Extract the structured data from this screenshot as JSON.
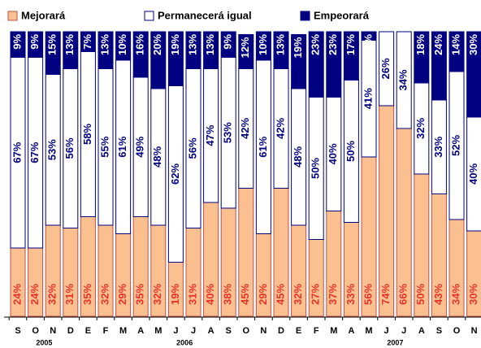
{
  "chart_data": {
    "type": "stacked_bar",
    "categories": [
      "S",
      "O",
      "N",
      "D",
      "E",
      "F",
      "M",
      "A",
      "M",
      "J",
      "J",
      "A",
      "S",
      "O",
      "N",
      "D",
      "E",
      "F",
      "M",
      "A",
      "M",
      "J",
      "J",
      "A",
      "S",
      "O",
      "N"
    ],
    "groups": [
      {
        "label": "2005",
        "start": 0,
        "end": 3
      },
      {
        "label": "2006",
        "start": 4,
        "end": 15
      },
      {
        "label": "2007",
        "start": 16,
        "end": 27
      }
    ],
    "ylim": [
      0,
      100
    ],
    "legend": "top",
    "series": [
      {
        "name": "Mejorará",
        "color": "#fbc090",
        "border": "#c0504d",
        "label_color": "#e8322a",
        "values": [
          24,
          24,
          32,
          31,
          35,
          32,
          29,
          35,
          32,
          19,
          31,
          40,
          38,
          45,
          29,
          45,
          32,
          27,
          37,
          33,
          56,
          74,
          66,
          50,
          43,
          34,
          30
        ],
        "value_labels": [
          "24%",
          "24%",
          "32%",
          "31%",
          "35%",
          "32%",
          "29%",
          "35%",
          "32%",
          "19%",
          "31%",
          "40%",
          "38%",
          "45%",
          "29%",
          "45%",
          "32%",
          "27%",
          "37%",
          "33%",
          "56%",
          "74%",
          "66%",
          "50%",
          "43%",
          "34%",
          "30%"
        ]
      },
      {
        "name": "Permanecerá igual",
        "color": "#ffffff",
        "border": "#000080",
        "label_color": "#000080",
        "values": [
          67,
          67,
          53,
          56,
          58,
          55,
          61,
          49,
          48,
          62,
          56,
          47,
          53,
          42,
          61,
          42,
          48,
          50,
          40,
          50,
          41,
          26,
          34,
          32,
          33,
          52,
          40
        ],
        "value_labels": [
          "67%",
          "67%",
          "53%",
          "56%",
          "58%",
          "55%",
          "61%",
          "49%",
          "48%",
          "62%",
          "56%",
          "47%",
          "53%",
          "42%",
          "61%",
          "42%",
          "48%",
          "50%",
          "40%",
          "50%",
          "41%",
          "26%",
          "34%",
          "32%",
          "33%",
          "52%",
          "40%"
        ]
      },
      {
        "name": "Empeorará",
        "color": "#000080",
        "border": "#000080",
        "label_color": "#ffffff",
        "values": [
          9,
          9,
          15,
          13,
          7,
          13,
          10,
          16,
          20,
          19,
          13,
          13,
          9,
          12,
          10,
          13,
          19,
          23,
          23,
          17,
          3,
          0,
          0,
          18,
          24,
          14,
          30
        ],
        "value_labels": [
          "9%",
          "9%",
          "15%",
          "13%",
          "7%",
          "13%",
          "10%",
          "16%",
          "20%",
          "19%",
          "13%",
          "13%",
          "9%",
          "12%",
          "10%",
          "13%",
          "19%",
          "23%",
          "23%",
          "17%",
          "3%",
          null,
          null,
          "18%",
          "24%",
          "14%",
          "30%"
        ]
      }
    ]
  }
}
